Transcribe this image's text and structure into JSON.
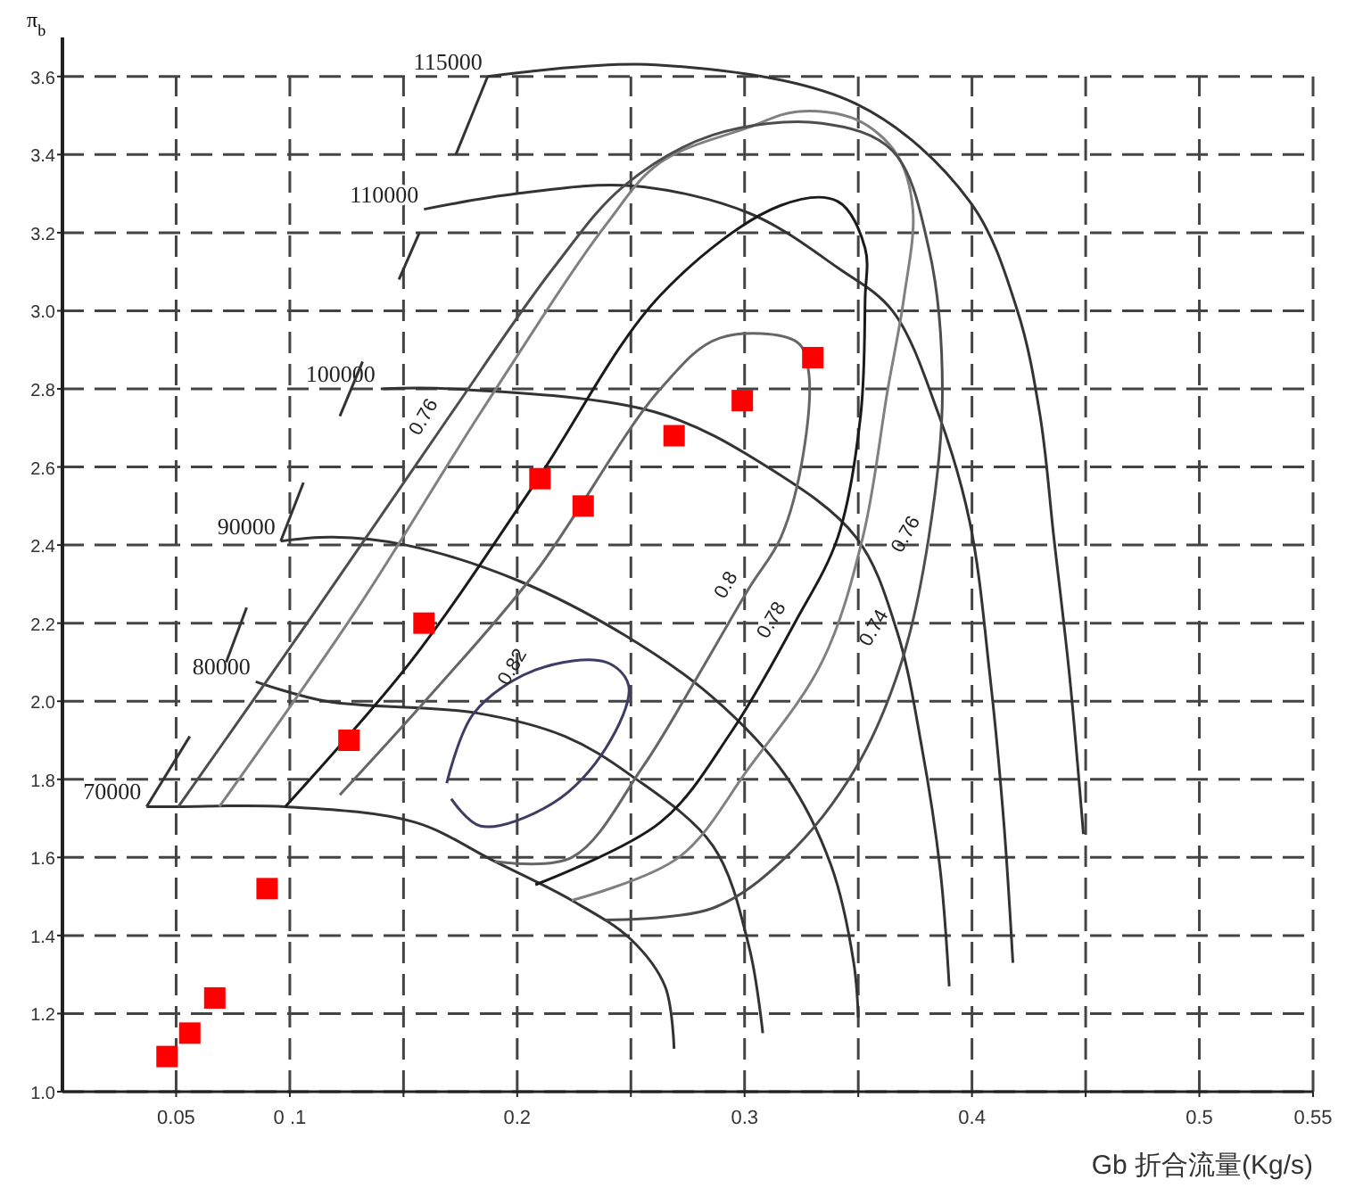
{
  "chart_data": {
    "type": "line",
    "xlabel": "Gb 折合流量(Kg/s)",
    "ylabel": "π$_{b}$",
    "xlim": [
      0,
      0.55
    ],
    "ylim": [
      1.0,
      3.7
    ],
    "xticks": [
      0.05,
      {
        "value": 0.1,
        "label": "0 .1"
      },
      {
        "value": 0.15,
        "label": null
      },
      0.2,
      {
        "value": 0.25,
        "label": null
      },
      0.3,
      {
        "value": 0.35,
        "label": null
      },
      0.4,
      {
        "value": 0.45,
        "label": null
      },
      0.5,
      0.55
    ],
    "yticks": [
      {
        "value": 1.0,
        "label": "1.0"
      },
      1.2,
      1.4,
      1.6,
      1.8,
      {
        "value": 2.0,
        "label": "2.0"
      },
      2.2,
      2.4,
      2.6,
      2.8,
      {
        "value": 3.0,
        "label": "3.0"
      },
      3.2,
      3.4,
      3.6
    ],
    "grid": true,
    "series": [
      {
        "name": "70000",
        "color": "#333333",
        "x": [
          0.037,
          0.051,
          0.098,
          0.155,
          0.19,
          0.224,
          0.25,
          0.265,
          0.269
        ],
        "values": [
          1.73,
          1.73,
          1.73,
          1.69,
          1.59,
          1.49,
          1.39,
          1.27,
          1.11
        ]
      },
      {
        "name": "80000",
        "color": "#333333",
        "x": [
          0.085,
          0.116,
          0.182,
          0.221,
          0.25,
          0.286,
          0.302,
          0.308
        ],
        "values": [
          2.05,
          2.0,
          1.97,
          1.91,
          1.81,
          1.63,
          1.37,
          1.15
        ]
      },
      {
        "name": "90000",
        "color": "#333333",
        "x": [
          0.096,
          0.119,
          0.151,
          0.2,
          0.247,
          0.286,
          0.318,
          0.338,
          0.348,
          0.35
        ],
        "values": [
          2.41,
          2.42,
          2.4,
          2.31,
          2.17,
          2.01,
          1.81,
          1.58,
          1.33,
          1.19
        ]
      },
      {
        "name": "100000",
        "color": "#333333",
        "x": [
          0.14,
          0.171,
          0.261,
          0.31,
          0.349,
          0.367,
          0.378,
          0.386,
          0.39
        ],
        "values": [
          2.8,
          2.8,
          2.74,
          2.6,
          2.42,
          2.18,
          1.88,
          1.57,
          1.27
        ]
      },
      {
        "name": "110000",
        "color": "#333333",
        "x": [
          0.159,
          0.2,
          0.25,
          0.302,
          0.341,
          0.365,
          0.385,
          0.399,
          0.408,
          0.414,
          0.418
        ],
        "values": [
          3.26,
          3.3,
          3.32,
          3.25,
          3.11,
          3.0,
          2.74,
          2.46,
          2.06,
          1.69,
          1.33
        ]
      },
      {
        "name": "115000",
        "color": "#333333",
        "x": [
          0.187,
          0.261,
          0.349,
          0.399,
          0.42,
          0.43,
          0.436,
          0.443,
          0.449
        ],
        "values": [
          3.6,
          3.63,
          3.53,
          3.28,
          3.0,
          2.73,
          2.42,
          2.06,
          1.66
        ]
      },
      {
        "color": "#333333",
        "x": [
          0.037,
          0.056
        ],
        "values": [
          1.73,
          1.91
        ]
      },
      {
        "color": "#333333",
        "x": [
          0.072,
          0.081
        ],
        "values": [
          2.1,
          2.24
        ]
      },
      {
        "color": "#333333",
        "x": [
          0.096,
          0.106
        ],
        "values": [
          2.41,
          2.56
        ]
      },
      {
        "color": "#333333",
        "x": [
          0.122,
          0.132
        ],
        "values": [
          2.73,
          2.87
        ]
      },
      {
        "color": "#333333",
        "x": [
          0.148,
          0.157
        ],
        "values": [
          3.08,
          3.2
        ]
      },
      {
        "color": "#333333",
        "x": [
          0.173,
          0.187
        ],
        "values": [
          3.4,
          3.6
        ]
      },
      {
        "color": "#3c3c64",
        "x": [
          0.169,
          0.181,
          0.208,
          0.239,
          0.249,
          0.239,
          0.216,
          0.184,
          0.171
        ],
        "values": [
          1.79,
          1.97,
          2.08,
          2.1,
          2.04,
          1.88,
          1.74,
          1.68,
          1.75
        ]
      },
      {
        "color": "#666666",
        "x": [
          0.122,
          0.161,
          0.208,
          0.263,
          0.289,
          0.323,
          0.328,
          0.326,
          0.316,
          0.302,
          0.279,
          0.255,
          0.224,
          0.19
        ],
        "values": [
          1.76,
          2.01,
          2.33,
          2.8,
          2.93,
          2.92,
          2.85,
          2.64,
          2.42,
          2.29,
          2.06,
          1.83,
          1.6,
          1.59
        ]
      },
      {
        "color": "#1a1a1a",
        "x": [
          0.098,
          0.153,
          0.208,
          0.263,
          0.316,
          0.341,
          0.353,
          0.353,
          0.351,
          0.341,
          0.322,
          0.294,
          0.263,
          0.208
        ],
        "values": [
          1.73,
          2.1,
          2.56,
          3.04,
          3.27,
          3.28,
          3.16,
          3.03,
          2.73,
          2.42,
          2.2,
          1.92,
          1.69,
          1.53
        ]
      },
      {
        "color": "#808080",
        "x": [
          0.069,
          0.13,
          0.184,
          0.239,
          0.263,
          0.302,
          0.323,
          0.349,
          0.367,
          0.374,
          0.37,
          0.363,
          0.352,
          0.334,
          0.302,
          0.271,
          0.224
        ],
        "values": [
          1.73,
          2.24,
          2.74,
          3.22,
          3.38,
          3.47,
          3.51,
          3.49,
          3.4,
          3.26,
          3.03,
          2.8,
          2.42,
          2.1,
          1.83,
          1.6,
          1.49
        ]
      },
      {
        "color": "#4d4d4d",
        "x": [
          0.051,
          0.11,
          0.169,
          0.216,
          0.247,
          0.286,
          0.334,
          0.365,
          0.381,
          0.387,
          0.381,
          0.369,
          0.349,
          0.318,
          0.286,
          0.239
        ],
        "values": [
          1.73,
          2.22,
          2.72,
          3.11,
          3.32,
          3.45,
          3.48,
          3.41,
          3.16,
          2.79,
          2.42,
          2.1,
          1.83,
          1.6,
          1.47,
          1.44
        ]
      },
      {
        "type": "scatter",
        "color": "#ff0000",
        "marker": "square",
        "x": [
          0.046,
          0.056,
          0.067,
          0.09,
          0.126,
          0.159,
          0.21,
          0.229,
          0.269,
          0.299,
          0.33
        ],
        "values": [
          1.09,
          1.15,
          1.24,
          1.52,
          1.9,
          2.2,
          2.57,
          2.5,
          2.68,
          2.77,
          2.88
        ]
      }
    ],
    "annotations": [
      {
        "text": "0.76",
        "x": 0.169,
        "y": 2.72
      },
      {
        "text": "0.82",
        "x": 0.208,
        "y": 2.08
      },
      {
        "text": "0.8",
        "x": 0.302,
        "y": 2.29
      },
      {
        "text": "0.78",
        "x": 0.322,
        "y": 2.2
      },
      {
        "text": "0.76",
        "x": 0.381,
        "y": 2.42
      },
      {
        "text": "0.74",
        "x": 0.367,
        "y": 2.18
      }
    ]
  }
}
